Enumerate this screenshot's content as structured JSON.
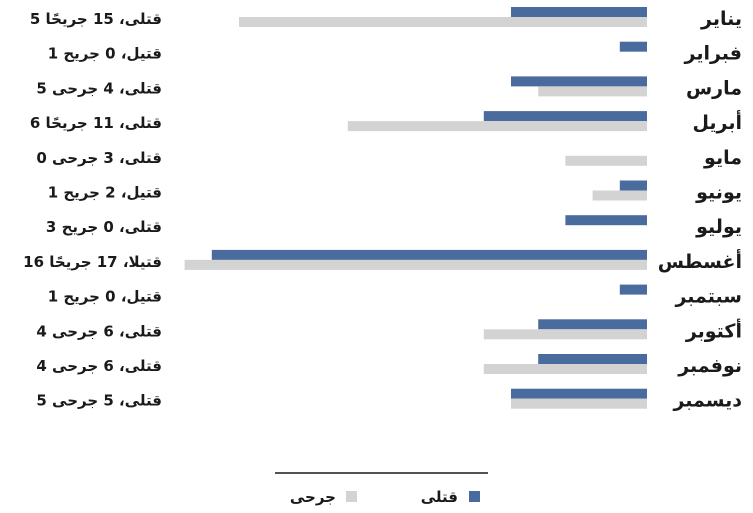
{
  "chart_data": {
    "type": "bar",
    "orientation": "horizontal",
    "direction": "rtl",
    "categories": [
      "يناير",
      "فبراير",
      "مارس",
      "أبريل",
      "مايو",
      "يونيو",
      "يوليو",
      "أغسطس",
      "سبتمبر",
      "أكتوبر",
      "نوفمبر",
      "ديسمبر"
    ],
    "series": [
      {
        "name": "قتلى",
        "color": "#4a6b9d",
        "values": [
          5,
          1,
          5,
          6,
          0,
          1,
          3,
          16,
          1,
          4,
          4,
          5
        ]
      },
      {
        "name": "جرحى",
        "color": "#d3d3d3",
        "values": [
          15,
          0,
          4,
          11,
          3,
          2,
          0,
          17,
          0,
          6,
          6,
          5
        ]
      }
    ],
    "data_labels": [
      "5 قتلى، 15 جريحًا",
      "1 قتيل، 0 جريح",
      "5 قتلى، 4 جرحى",
      "6 قتلى، 11 جريحًا",
      "0 قتلى، 3 جرحى",
      "1 قتيل، 2 جريح",
      "3 قتلى، 0 جريح",
      "16 قتيلا، 17 جريحًا",
      "1 قتيل، 0 جريح",
      "4 قتلى، 6 جرحى",
      "4 قتلى، 6 جرحى",
      "5 قتلى، 5 جرحى"
    ],
    "legend": {
      "position": "bottom",
      "entries": [
        "قتلى",
        "جرحى"
      ]
    },
    "grid": false,
    "xlim": [
      0,
      17
    ]
  }
}
